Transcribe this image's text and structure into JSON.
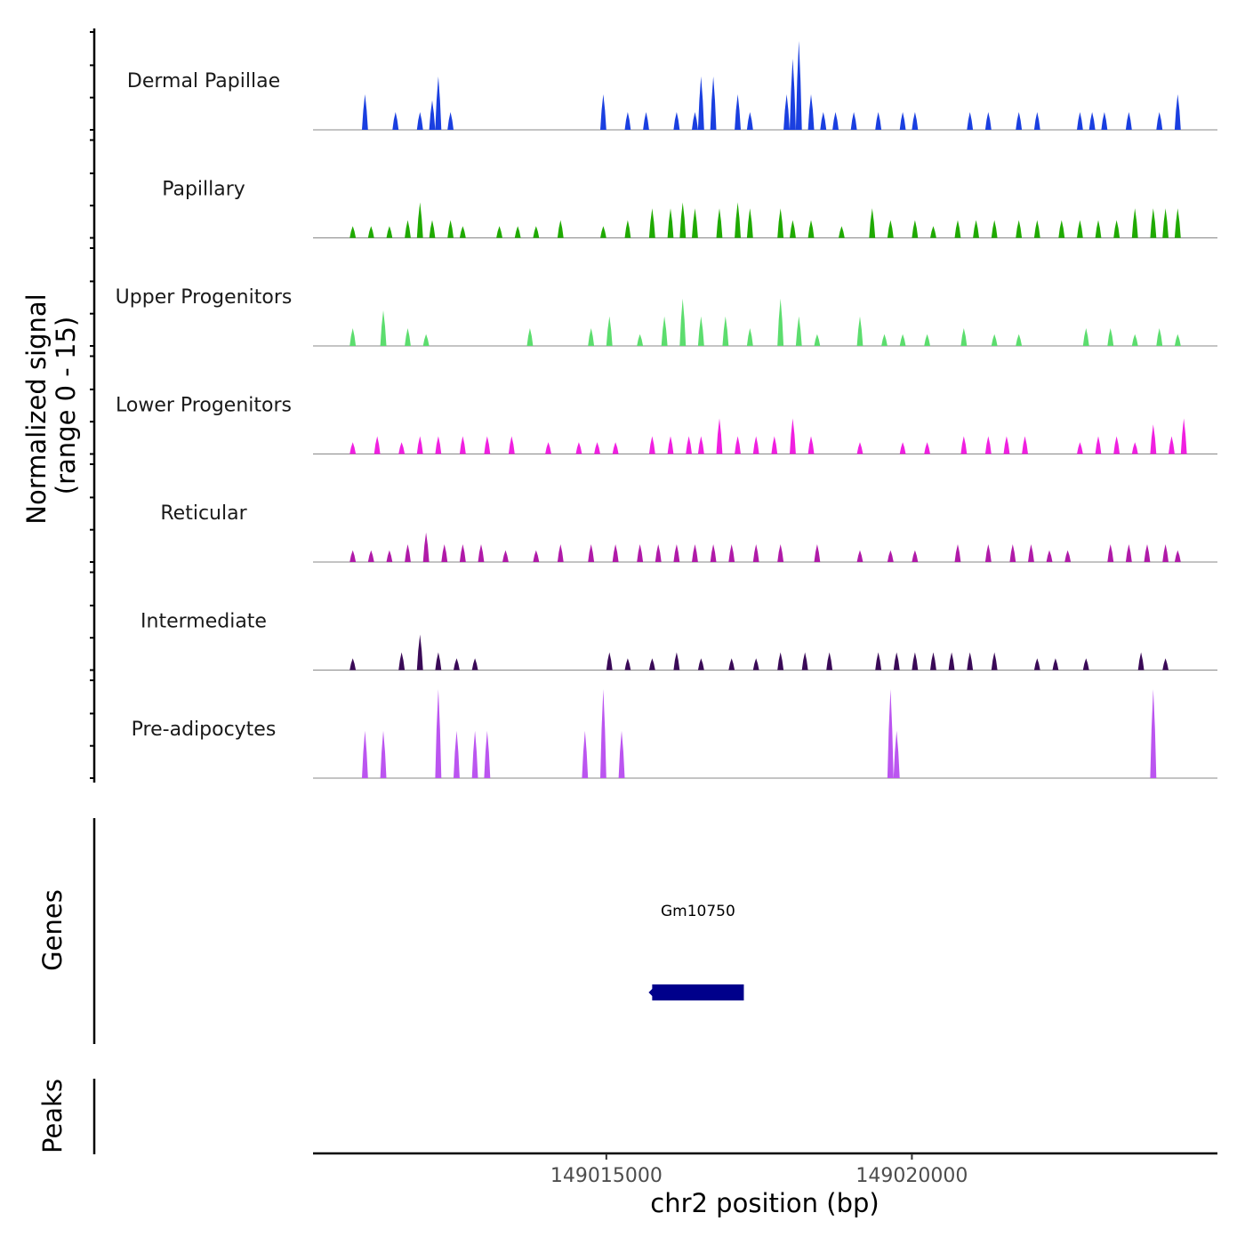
{
  "chart_data": {
    "type": "area",
    "chromosome": "chr2",
    "xlabel": "chr2 position (bp)",
    "ylabel_line1": "Normalized signal",
    "ylabel_line2": "(range 0 - 15)",
    "ylim": [
      0,
      15
    ],
    "xlim": [
      149010200,
      149025000
    ],
    "x_ticks": [
      149015000,
      149020000
    ],
    "x_tick_labels": [
      "149015000",
      "149020000"
    ],
    "signal_bin_bp": 100,
    "signal_start": 149010900,
    "tracks": [
      {
        "name": "Dermal Papillae",
        "color": "#1a3fe0",
        "peaks": [
          [
            149011000,
            6
          ],
          [
            149011500,
            3
          ],
          [
            149011900,
            3
          ],
          [
            149012100,
            5
          ],
          [
            149012200,
            9
          ],
          [
            149012400,
            3
          ],
          [
            149014900,
            6
          ],
          [
            149015300,
            3
          ],
          [
            149015600,
            3
          ],
          [
            149016100,
            3
          ],
          [
            149016400,
            3
          ],
          [
            149016500,
            9
          ],
          [
            149016700,
            9
          ],
          [
            149017100,
            6
          ],
          [
            149017300,
            3
          ],
          [
            149017900,
            6
          ],
          [
            149018000,
            12
          ],
          [
            149018100,
            15
          ],
          [
            149018300,
            6
          ],
          [
            149018500,
            3
          ],
          [
            149018700,
            3
          ],
          [
            149019000,
            3
          ],
          [
            149019400,
            3
          ],
          [
            149019800,
            3
          ],
          [
            149020000,
            3
          ],
          [
            149020900,
            3
          ],
          [
            149021200,
            3
          ],
          [
            149021700,
            3
          ],
          [
            149022000,
            3
          ],
          [
            149022700,
            3
          ],
          [
            149022900,
            3
          ],
          [
            149023100,
            3
          ],
          [
            149023500,
            3
          ],
          [
            149024000,
            3
          ],
          [
            149024300,
            6
          ]
        ]
      },
      {
        "name": "Papillary",
        "color": "#1faa00",
        "peaks": [
          [
            149010800,
            2
          ],
          [
            149011100,
            2
          ],
          [
            149011400,
            2
          ],
          [
            149011700,
            3
          ],
          [
            149011900,
            6
          ],
          [
            149012100,
            3
          ],
          [
            149012400,
            3
          ],
          [
            149012600,
            2
          ],
          [
            149013200,
            2
          ],
          [
            149013500,
            2
          ],
          [
            149013800,
            2
          ],
          [
            149014200,
            3
          ],
          [
            149014900,
            2
          ],
          [
            149015300,
            3
          ],
          [
            149015700,
            5
          ],
          [
            149016000,
            5
          ],
          [
            149016200,
            6
          ],
          [
            149016400,
            5
          ],
          [
            149016800,
            5
          ],
          [
            149017100,
            6
          ],
          [
            149017300,
            5
          ],
          [
            149017800,
            5
          ],
          [
            149018000,
            3
          ],
          [
            149018300,
            3
          ],
          [
            149018800,
            2
          ],
          [
            149019300,
            5
          ],
          [
            149019600,
            3
          ],
          [
            149020000,
            3
          ],
          [
            149020300,
            2
          ],
          [
            149020700,
            3
          ],
          [
            149021000,
            3
          ],
          [
            149021300,
            3
          ],
          [
            149021700,
            3
          ],
          [
            149022000,
            3
          ],
          [
            149022400,
            3
          ],
          [
            149022700,
            3
          ],
          [
            149023000,
            3
          ],
          [
            149023300,
            3
          ],
          [
            149023600,
            5
          ],
          [
            149023900,
            5
          ],
          [
            149024100,
            5
          ],
          [
            149024300,
            5
          ]
        ]
      },
      {
        "name": "Upper Progenitors",
        "color": "#5cdd6e",
        "peaks": [
          [
            149010800,
            3
          ],
          [
            149011300,
            6
          ],
          [
            149011700,
            3
          ],
          [
            149012000,
            2
          ],
          [
            149013700,
            3
          ],
          [
            149014700,
            3
          ],
          [
            149015000,
            5
          ],
          [
            149015500,
            2
          ],
          [
            149015900,
            5
          ],
          [
            149016200,
            8
          ],
          [
            149016500,
            5
          ],
          [
            149016900,
            5
          ],
          [
            149017300,
            3
          ],
          [
            149017800,
            8
          ],
          [
            149018100,
            5
          ],
          [
            149018400,
            2
          ],
          [
            149019100,
            5
          ],
          [
            149019500,
            2
          ],
          [
            149019800,
            2
          ],
          [
            149020200,
            2
          ],
          [
            149020800,
            3
          ],
          [
            149021300,
            2
          ],
          [
            149021700,
            2
          ],
          [
            149022800,
            3
          ],
          [
            149023200,
            3
          ],
          [
            149023600,
            2
          ],
          [
            149024000,
            3
          ],
          [
            149024300,
            2
          ]
        ]
      },
      {
        "name": "Lower Progenitors",
        "color": "#f01fe0",
        "peaks": [
          [
            149010800,
            2
          ],
          [
            149011200,
            3
          ],
          [
            149011600,
            2
          ],
          [
            149011900,
            3
          ],
          [
            149012200,
            3
          ],
          [
            149012600,
            3
          ],
          [
            149013000,
            3
          ],
          [
            149013400,
            3
          ],
          [
            149014000,
            2
          ],
          [
            149014500,
            2
          ],
          [
            149014800,
            2
          ],
          [
            149015100,
            2
          ],
          [
            149015700,
            3
          ],
          [
            149016000,
            3
          ],
          [
            149016300,
            3
          ],
          [
            149016500,
            3
          ],
          [
            149016800,
            6
          ],
          [
            149017100,
            3
          ],
          [
            149017400,
            3
          ],
          [
            149017700,
            3
          ],
          [
            149018000,
            6
          ],
          [
            149018300,
            3
          ],
          [
            149019100,
            2
          ],
          [
            149019800,
            2
          ],
          [
            149020200,
            2
          ],
          [
            149020800,
            3
          ],
          [
            149021200,
            3
          ],
          [
            149021500,
            3
          ],
          [
            149021800,
            3
          ],
          [
            149022700,
            2
          ],
          [
            149023000,
            3
          ],
          [
            149023300,
            3
          ],
          [
            149023600,
            2
          ],
          [
            149023900,
            5
          ],
          [
            149024200,
            3
          ],
          [
            149024400,
            6
          ]
        ]
      },
      {
        "name": "Reticular",
        "color": "#b01aa8",
        "peaks": [
          [
            149010800,
            2
          ],
          [
            149011100,
            2
          ],
          [
            149011400,
            2
          ],
          [
            149011700,
            3
          ],
          [
            149012000,
            5
          ],
          [
            149012300,
            3
          ],
          [
            149012600,
            3
          ],
          [
            149012900,
            3
          ],
          [
            149013300,
            2
          ],
          [
            149013800,
            2
          ],
          [
            149014200,
            3
          ],
          [
            149014700,
            3
          ],
          [
            149015100,
            3
          ],
          [
            149015500,
            3
          ],
          [
            149015800,
            3
          ],
          [
            149016100,
            3
          ],
          [
            149016400,
            3
          ],
          [
            149016700,
            3
          ],
          [
            149017000,
            3
          ],
          [
            149017400,
            3
          ],
          [
            149017800,
            3
          ],
          [
            149018400,
            3
          ],
          [
            149019100,
            2
          ],
          [
            149019600,
            2
          ],
          [
            149020000,
            2
          ],
          [
            149020700,
            3
          ],
          [
            149021200,
            3
          ],
          [
            149021600,
            3
          ],
          [
            149021900,
            3
          ],
          [
            149022200,
            2
          ],
          [
            149022500,
            2
          ],
          [
            149023200,
            3
          ],
          [
            149023500,
            3
          ],
          [
            149023800,
            3
          ],
          [
            149024100,
            3
          ],
          [
            149024300,
            2
          ]
        ]
      },
      {
        "name": "Intermediate",
        "color": "#3a0a57",
        "peaks": [
          [
            149010800,
            2
          ],
          [
            149011600,
            3
          ],
          [
            149011900,
            6
          ],
          [
            149012200,
            3
          ],
          [
            149012500,
            2
          ],
          [
            149012800,
            2
          ],
          [
            149015000,
            3
          ],
          [
            149015300,
            2
          ],
          [
            149015700,
            2
          ],
          [
            149016100,
            3
          ],
          [
            149016500,
            2
          ],
          [
            149017000,
            2
          ],
          [
            149017400,
            2
          ],
          [
            149017800,
            3
          ],
          [
            149018200,
            3
          ],
          [
            149018600,
            3
          ],
          [
            149019400,
            3
          ],
          [
            149019700,
            3
          ],
          [
            149020000,
            3
          ],
          [
            149020300,
            3
          ],
          [
            149020600,
            3
          ],
          [
            149020900,
            3
          ],
          [
            149021300,
            3
          ],
          [
            149022000,
            2
          ],
          [
            149022300,
            2
          ],
          [
            149022800,
            2
          ],
          [
            149023700,
            3
          ],
          [
            149024100,
            2
          ]
        ]
      },
      {
        "name": "Pre-adipocytes",
        "color": "#bb55f0",
        "peaks": [
          [
            149011000,
            8
          ],
          [
            149011300,
            8
          ],
          [
            149012200,
            15
          ],
          [
            149012500,
            8
          ],
          [
            149012800,
            8
          ],
          [
            149013000,
            8
          ],
          [
            149014600,
            8
          ],
          [
            149014900,
            15
          ],
          [
            149015200,
            8
          ],
          [
            149019600,
            15
          ],
          [
            149019700,
            8
          ],
          [
            149023900,
            15
          ]
        ]
      }
    ],
    "genes": {
      "title": "Genes",
      "items": [
        {
          "name": "Gm10750",
          "start": 149015750,
          "end": 149017250,
          "strand": "-",
          "color": "#00008b"
        }
      ]
    },
    "peaks_track": {
      "title": "Peaks",
      "items": []
    }
  }
}
